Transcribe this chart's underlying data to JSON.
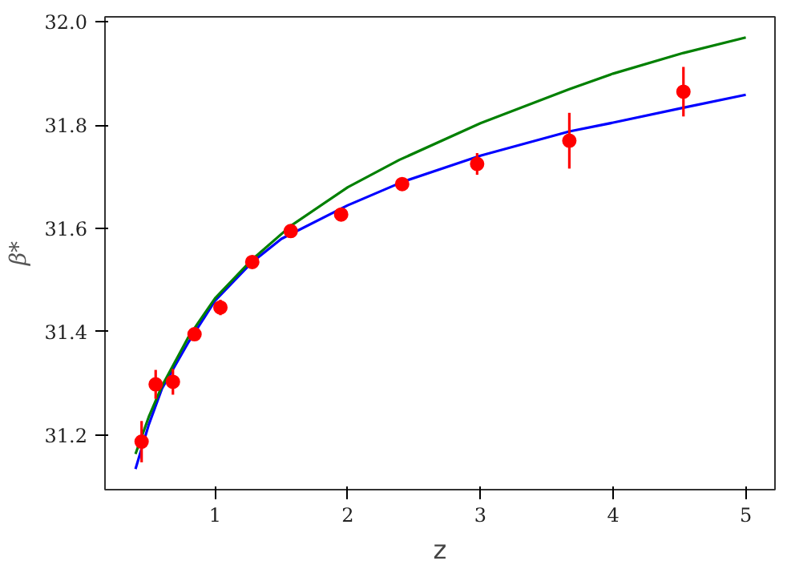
{
  "chart_data": {
    "type": "scatter",
    "xlabel": "z",
    "ylabel": "β*",
    "xlim": [
      0.17,
      5.22
    ],
    "ylim": [
      31.094,
      32.01
    ],
    "xticks": [
      1,
      2,
      3,
      4,
      5
    ],
    "yticks": [
      {
        "value": 31.2,
        "label": "31.2"
      },
      {
        "value": 31.4,
        "label": "31.4"
      },
      {
        "value": 31.6,
        "label": "31.6"
      },
      {
        "value": 31.8,
        "label": "31.8"
      },
      {
        "value": 32.0,
        "label": "32.0"
      }
    ],
    "grid": false,
    "series": [
      {
        "type": "line",
        "color": "#0000ff",
        "x": [
          0.4,
          0.5,
          0.6,
          0.8,
          1.0,
          1.28,
          1.5,
          2.0,
          2.41,
          3.0,
          3.67,
          4.0,
          4.53,
          5.0
        ],
        "values": [
          31.134,
          31.22,
          31.29,
          31.38,
          31.46,
          31.535,
          31.58,
          31.645,
          31.69,
          31.741,
          31.788,
          31.805,
          31.834,
          31.859
        ]
      },
      {
        "type": "line",
        "color": "#008000",
        "x": [
          0.4,
          0.5,
          0.6,
          0.8,
          1.0,
          1.28,
          1.57,
          2.0,
          2.39,
          3.0,
          3.67,
          4.0,
          4.53,
          5.0
        ],
        "values": [
          31.163,
          31.235,
          31.295,
          31.39,
          31.465,
          31.54,
          31.605,
          31.68,
          31.733,
          31.804,
          31.87,
          31.9,
          31.94,
          31.97
        ]
      },
      {
        "color": "#ff0000",
        "marker": "circle",
        "x": [
          0.446,
          0.552,
          0.682,
          0.845,
          1.04,
          1.28,
          1.57,
          1.95,
          2.41,
          2.975,
          3.67,
          4.53
        ],
        "values": [
          31.187,
          31.298,
          31.303,
          31.395,
          31.447,
          31.535,
          31.595,
          31.627,
          31.686,
          31.725,
          31.77,
          31.865
        ],
        "errors": [
          0.04,
          0.028,
          0.025,
          0.01,
          0.015,
          0.01,
          0.008,
          0.006,
          0.008,
          0.021,
          0.054,
          0.048
        ]
      }
    ]
  }
}
